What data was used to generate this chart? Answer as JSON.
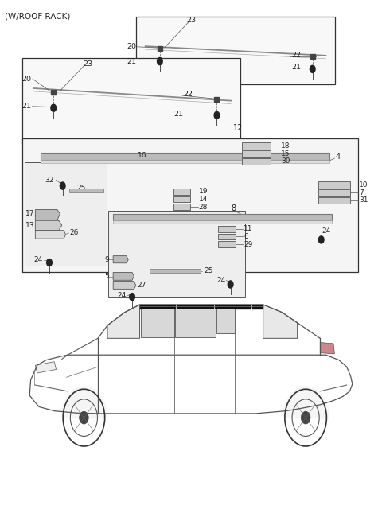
{
  "title": "(W/ROOF RACK)",
  "bg_color": "#ffffff",
  "line_color": "#333333",
  "text_color": "#222222",
  "fig_width": 4.8,
  "fig_height": 6.55,
  "dpi": 100
}
